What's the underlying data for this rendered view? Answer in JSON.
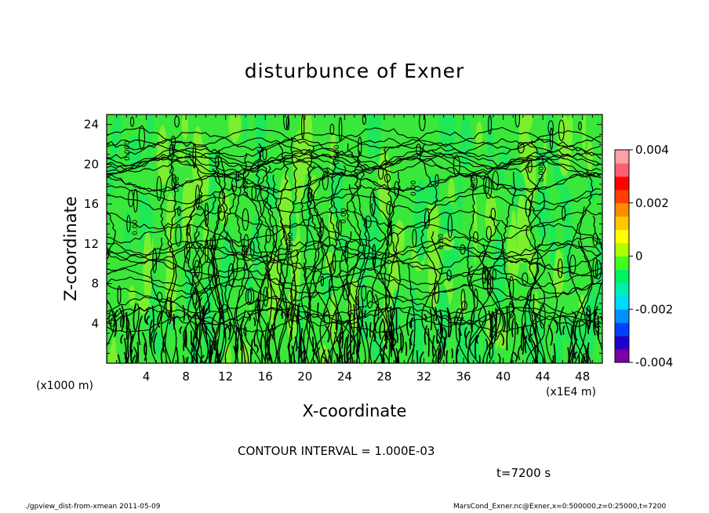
{
  "chart_data": {
    "type": "heatmap",
    "title": "disturbunce of Exner",
    "xlabel": "X-coordinate",
    "ylabel": "Z-coordinate",
    "x_unit_left": "(x1000 m)",
    "x_unit_right": "(x1E4 m)",
    "xlim": [
      0,
      50
    ],
    "ylim": [
      0,
      25
    ],
    "x_ticks": [
      4,
      8,
      12,
      16,
      20,
      24,
      28,
      32,
      36,
      40,
      44,
      48
    ],
    "y_ticks": [
      4,
      8,
      12,
      16,
      20,
      24
    ],
    "colorbar": {
      "min": -0.004,
      "max": 0.004,
      "tick_labels": [
        "0.004",
        "0.002",
        "0",
        "-0.002",
        "-0.004"
      ],
      "tick_values": [
        0.004,
        0.002,
        0,
        -0.002,
        -0.004
      ],
      "colors": [
        "#7b00a8",
        "#2000c8",
        "#0040ff",
        "#0090ff",
        "#00d8ff",
        "#00f0b0",
        "#00f060",
        "#40ff20",
        "#b0ff00",
        "#ffff00",
        "#ffc800",
        "#ff8c00",
        "#ff4000",
        "#ff0000",
        "#ff6070",
        "#ffa0a8"
      ]
    },
    "contour_interval_text": "CONTOUR INTERVAL = 1.000E-03",
    "contour_labels": [
      "0.000",
      "0.00",
      "0.00"
    ],
    "colors": {
      "field_main": "#39e83a",
      "field_high": "#7cf02e",
      "field_light": "#1ee85a",
      "contour": "#000000"
    }
  },
  "time_label": "t=7200 s",
  "footer": {
    "left": "./gpview_dist-from-xmean   2011-05-09",
    "right": "MarsCond_Exner.nc@Exner,x=0:500000,z=0:25000,t=7200"
  }
}
